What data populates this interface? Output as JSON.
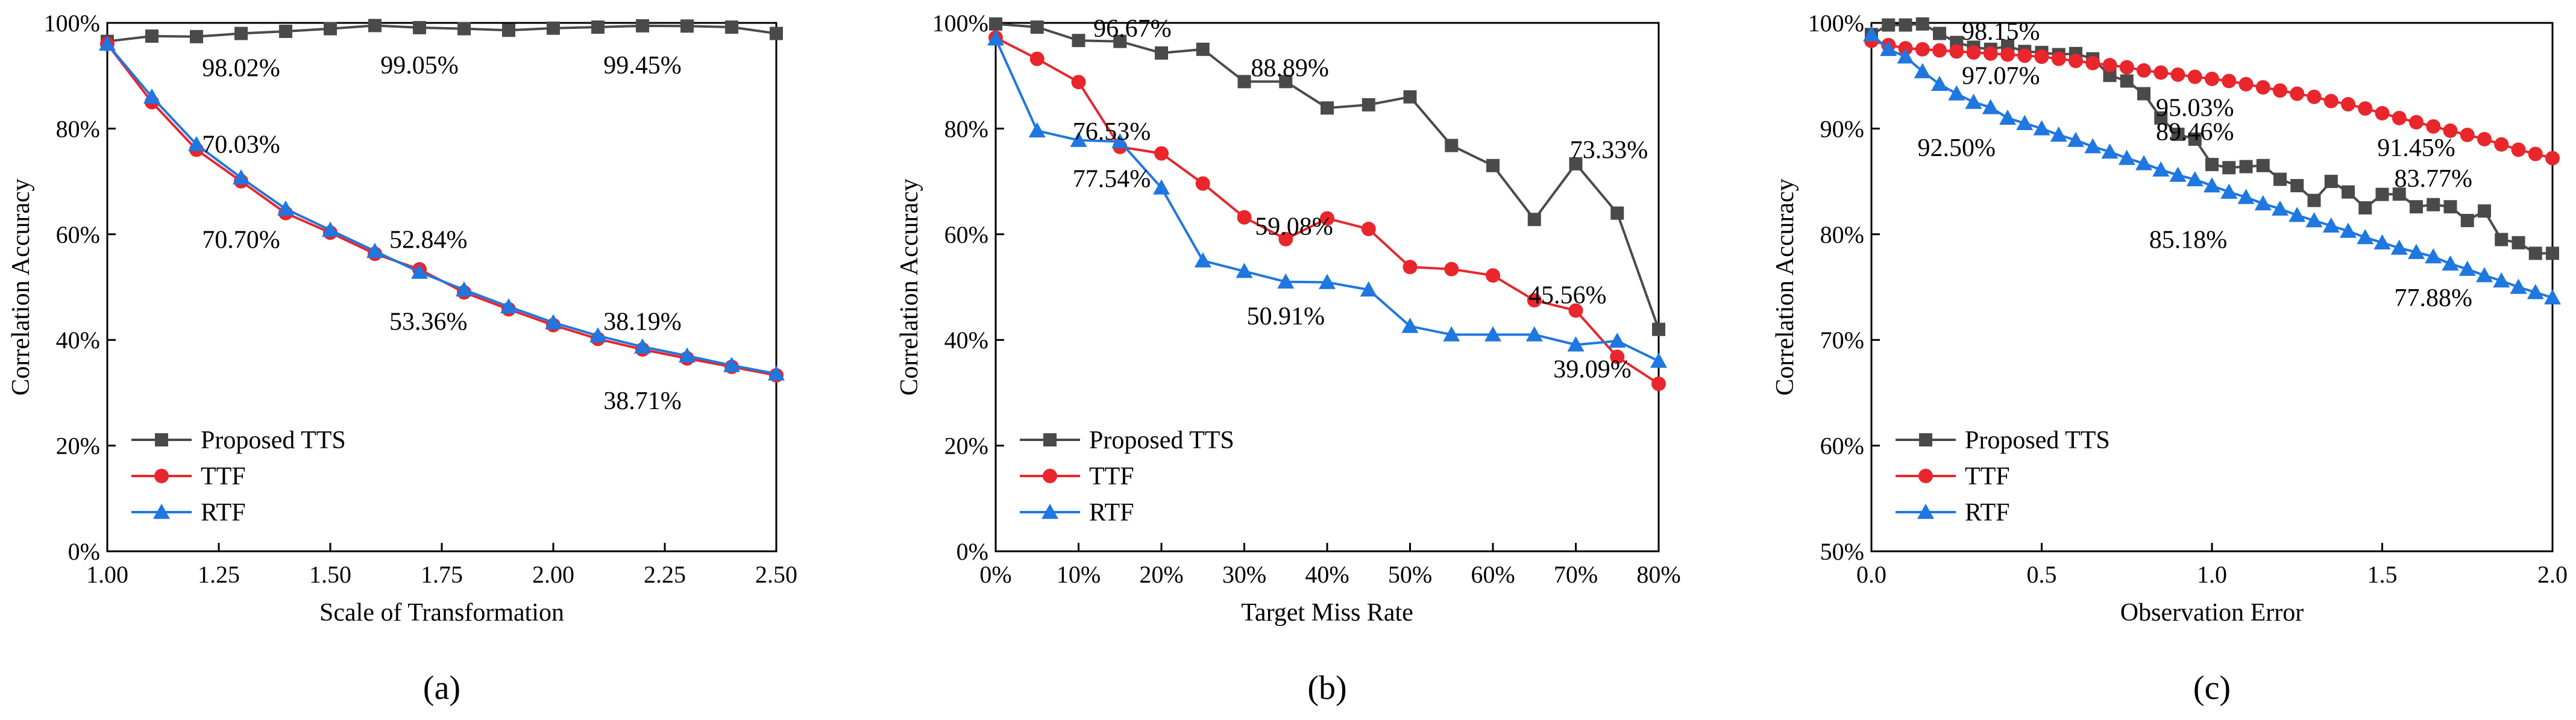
{
  "colors": {
    "tts": "#4a4a4a",
    "ttf": "#e8262c",
    "rtf": "#1f77e0",
    "axis": "#000000"
  },
  "chart_data": [
    {
      "type": "line",
      "panel_label": "(a)",
      "xlabel": "Scale of Transformation",
      "ylabel": "Correlation Accuracy",
      "xlim": [
        1.0,
        2.5
      ],
      "ylim": [
        0,
        100
      ],
      "x_ticks": [
        "1.00",
        "1.25",
        "1.50",
        "1.75",
        "2.00",
        "2.25",
        "2.50"
      ],
      "y_ticks": [
        "0%",
        "20%",
        "40%",
        "60%",
        "80%",
        "100%"
      ],
      "legend_position": "bottom-left",
      "x": [
        1.0,
        1.1,
        1.2,
        1.3,
        1.4,
        1.5,
        1.6,
        1.7,
        1.8,
        1.9,
        2.0,
        2.1,
        2.2,
        2.3,
        2.4,
        2.5
      ],
      "series": [
        {
          "name": "Proposed TTS",
          "marker": "square",
          "color": "tts",
          "values": [
            96.5,
            97.5,
            97.4,
            98.0,
            98.4,
            98.9,
            99.5,
            99.1,
            98.9,
            98.6,
            99.0,
            99.2,
            99.45,
            99.4,
            99.2,
            98.0
          ]
        },
        {
          "name": "TTF",
          "marker": "circle",
          "color": "ttf",
          "values": [
            96.0,
            85.0,
            76.0,
            70.03,
            64.0,
            60.3,
            56.3,
            53.36,
            49.0,
            45.8,
            42.8,
            40.2,
            38.19,
            36.5,
            34.9,
            33.3
          ]
        },
        {
          "name": "RTF",
          "marker": "triangle",
          "color": "rtf",
          "values": [
            96.0,
            86.0,
            77.0,
            70.7,
            64.8,
            60.8,
            56.8,
            52.84,
            49.5,
            46.3,
            43.3,
            40.8,
            38.71,
            37.0,
            35.2,
            33.6
          ]
        }
      ],
      "annotations": [
        {
          "text": "98.02%",
          "x": 1.3,
          "y": 91.5,
          "anchor": "middle"
        },
        {
          "text": "99.05%",
          "x": 1.7,
          "y": 92.0,
          "anchor": "middle"
        },
        {
          "text": "99.45%",
          "x": 2.2,
          "y": 92.0,
          "anchor": "middle"
        },
        {
          "text": "70.03%",
          "x": 1.3,
          "y": 77.0,
          "anchor": "middle"
        },
        {
          "text": "70.70%",
          "x": 1.3,
          "y": 59.0,
          "anchor": "middle"
        },
        {
          "text": "52.84%",
          "x": 1.72,
          "y": 59.0,
          "anchor": "middle"
        },
        {
          "text": "53.36%",
          "x": 1.72,
          "y": 43.5,
          "anchor": "middle"
        },
        {
          "text": "38.19%",
          "x": 2.2,
          "y": 43.5,
          "anchor": "middle"
        },
        {
          "text": "38.71%",
          "x": 2.2,
          "y": 28.5,
          "anchor": "middle"
        }
      ]
    },
    {
      "type": "line",
      "panel_label": "(b)",
      "xlabel": "Target Miss Rate",
      "ylabel": "Correlation Accuracy",
      "xlim": [
        0,
        80
      ],
      "ylim": [
        0,
        100
      ],
      "x_ticks": [
        "0%",
        "10%",
        "20%",
        "30%",
        "40%",
        "50%",
        "60%",
        "70%",
        "80%"
      ],
      "y_ticks": [
        "0%",
        "20%",
        "40%",
        "60%",
        "80%",
        "100%"
      ],
      "legend_position": "bottom-left",
      "x": [
        0,
        5,
        10,
        15,
        20,
        25,
        30,
        35,
        40,
        45,
        50,
        55,
        60,
        65,
        70,
        75,
        80
      ],
      "series": [
        {
          "name": "Proposed TTS",
          "marker": "square",
          "color": "tts",
          "values": [
            99.8,
            99.2,
            96.67,
            96.5,
            94.3,
            95.0,
            88.89,
            88.9,
            83.9,
            84.5,
            86.0,
            76.8,
            73.0,
            62.8,
            73.33,
            64.0,
            42.0
          ]
        },
        {
          "name": "TTF",
          "marker": "circle",
          "color": "ttf",
          "values": [
            97.2,
            93.2,
            88.8,
            76.53,
            75.3,
            69.6,
            63.2,
            59.08,
            63.0,
            61.0,
            53.8,
            53.4,
            52.2,
            47.5,
            45.56,
            36.8,
            31.7
          ]
        },
        {
          "name": "RTF",
          "marker": "triangle",
          "color": "rtf",
          "values": [
            97.0,
            79.6,
            77.8,
            77.54,
            68.8,
            55.0,
            53.0,
            51.0,
            50.91,
            49.5,
            42.6,
            41.0,
            41.0,
            41.0,
            39.09,
            39.8,
            36.0
          ]
        }
      ],
      "annotations": [
        {
          "text": "96.67%",
          "x": 16.5,
          "y": 99.0,
          "anchor": "middle"
        },
        {
          "text": "88.89%",
          "x": 35.5,
          "y": 91.5,
          "anchor": "middle"
        },
        {
          "text": "73.33%",
          "x": 74.0,
          "y": 76.0,
          "anchor": "middle"
        },
        {
          "text": "76.53%",
          "x": 14.0,
          "y": 79.5,
          "anchor": "middle"
        },
        {
          "text": "77.54%",
          "x": 14.0,
          "y": 70.5,
          "anchor": "middle"
        },
        {
          "text": "59.08%",
          "x": 36.0,
          "y": 61.5,
          "anchor": "middle"
        },
        {
          "text": "50.91%",
          "x": 35.0,
          "y": 44.5,
          "anchor": "middle"
        },
        {
          "text": "45.56%",
          "x": 69.0,
          "y": 48.5,
          "anchor": "middle"
        },
        {
          "text": "39.09%",
          "x": 72.0,
          "y": 34.5,
          "anchor": "middle"
        }
      ]
    },
    {
      "type": "line",
      "panel_label": "(c)",
      "xlabel": "Observation Error",
      "ylabel": "Correlation Accuracy",
      "xlim": [
        0,
        2.0
      ],
      "ylim": [
        50,
        100
      ],
      "x_ticks": [
        "0.0",
        "0.5",
        "1.0",
        "1.5",
        "2.0"
      ],
      "y_ticks": [
        "50%",
        "60%",
        "70%",
        "80%",
        "90%",
        "100%"
      ],
      "legend_position": "bottom-left",
      "x": [
        0.0,
        0.05,
        0.1,
        0.15,
        0.2,
        0.25,
        0.3,
        0.35,
        0.4,
        0.45,
        0.5,
        0.55,
        0.6,
        0.65,
        0.7,
        0.75,
        0.8,
        0.85,
        0.9,
        0.95,
        1.0,
        1.05,
        1.1,
        1.15,
        1.2,
        1.25,
        1.3,
        1.35,
        1.4,
        1.45,
        1.5,
        1.55,
        1.6,
        1.65,
        1.7,
        1.75,
        1.8,
        1.85,
        1.9,
        1.95,
        2.0
      ],
      "series": [
        {
          "name": "Proposed TTS",
          "marker": "square",
          "color": "tts",
          "values": [
            98.9,
            99.8,
            99.8,
            99.9,
            99.0,
            98.15,
            97.7,
            97.5,
            97.8,
            97.3,
            97.2,
            97.0,
            97.1,
            96.6,
            95.03,
            94.5,
            93.3,
            91.0,
            89.46,
            89.0,
            86.6,
            86.3,
            86.4,
            86.5,
            85.2,
            84.6,
            83.2,
            85.0,
            84.0,
            82.5,
            83.77,
            83.8,
            82.6,
            82.8,
            82.6,
            81.3,
            82.2,
            79.5,
            79.2,
            78.2,
            78.2
          ]
        },
        {
          "name": "TTF",
          "marker": "circle",
          "color": "ttf",
          "values": [
            98.3,
            97.9,
            97.6,
            97.5,
            97.4,
            97.3,
            97.2,
            97.1,
            97.0,
            96.9,
            96.8,
            96.6,
            96.4,
            96.2,
            96.0,
            95.8,
            95.5,
            95.3,
            95.1,
            94.9,
            94.7,
            94.5,
            94.2,
            93.9,
            93.6,
            93.3,
            93.0,
            92.6,
            92.3,
            91.9,
            91.45,
            91.0,
            90.6,
            90.2,
            89.8,
            89.4,
            89.0,
            88.5,
            88.0,
            87.6,
            87.2
          ]
        },
        {
          "name": "RTF",
          "marker": "triangle",
          "color": "rtf",
          "values": [
            98.9,
            97.5,
            96.8,
            95.4,
            94.2,
            93.3,
            92.5,
            92.0,
            91.0,
            90.5,
            90.0,
            89.4,
            88.9,
            88.3,
            87.8,
            87.2,
            86.7,
            86.1,
            85.6,
            85.18,
            84.6,
            84.0,
            83.5,
            82.9,
            82.4,
            81.8,
            81.3,
            80.8,
            80.3,
            79.7,
            79.2,
            78.7,
            78.3,
            77.88,
            77.2,
            76.7,
            76.1,
            75.6,
            75.0,
            74.5,
            74.0
          ]
        }
      ],
      "annotations": [
        {
          "text": "98.15%",
          "x": 0.38,
          "y": 99.2,
          "anchor": "middle"
        },
        {
          "text": "97.07%",
          "x": 0.38,
          "y": 95.0,
          "anchor": "middle"
        },
        {
          "text": "92.50%",
          "x": 0.25,
          "y": 88.2,
          "anchor": "middle"
        },
        {
          "text": "95.03%",
          "x": 0.95,
          "y": 92.0,
          "anchor": "middle"
        },
        {
          "text": "89.46%",
          "x": 0.95,
          "y": 89.7,
          "anchor": "middle"
        },
        {
          "text": "91.45%",
          "x": 1.6,
          "y": 88.2,
          "anchor": "middle"
        },
        {
          "text": "83.77%",
          "x": 1.65,
          "y": 85.3,
          "anchor": "middle"
        },
        {
          "text": "85.18%",
          "x": 0.93,
          "y": 79.5,
          "anchor": "middle"
        },
        {
          "text": "77.88%",
          "x": 1.65,
          "y": 74.0,
          "anchor": "middle"
        }
      ]
    }
  ]
}
